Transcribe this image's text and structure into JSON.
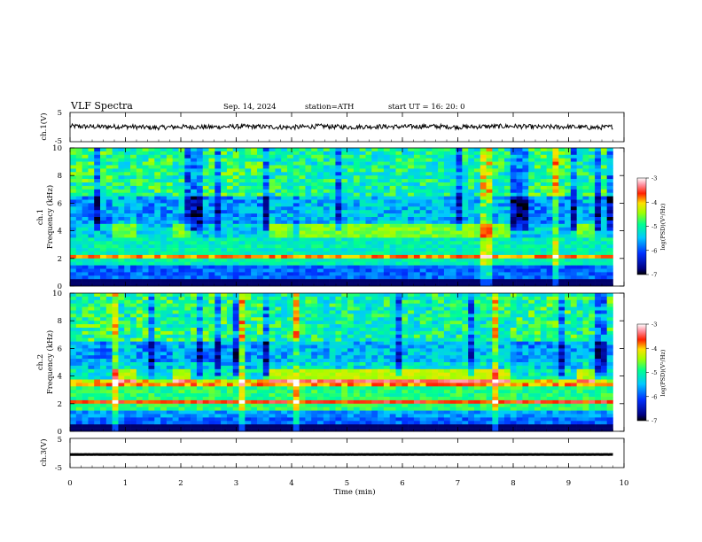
{
  "header": {
    "title": "VLF  Spectra",
    "date": "Sep. 14, 2024",
    "station": "station=ATH",
    "start": "start  UT  =   16: 20: 0"
  },
  "colors": {
    "spec_low": "#00007a",
    "spec_mid": "#00ffd0",
    "spec_high": "#ff1a1a",
    "spec_top": "#ffffff",
    "trace": "#000000"
  },
  "chart_data": [
    {
      "id": "ch1-waveform",
      "type": "line",
      "ylabel": "ch.1(V)",
      "ylim": [
        -5,
        5
      ],
      "yticks": [
        "5",
        "-5"
      ],
      "xlim": [
        0,
        10
      ],
      "x": [
        0,
        0.5,
        1,
        1.5,
        2,
        2.5,
        3,
        3.5,
        4,
        4.5,
        5,
        5.5,
        6,
        6.5,
        7,
        7.5,
        8,
        8.5,
        9,
        9.5,
        9.8
      ],
      "values": [
        0.3,
        0.1,
        0.2,
        -0.2,
        0.1,
        0,
        0.2,
        0.1,
        -0.1,
        0.3,
        0,
        0.2,
        0.1,
        0.3,
        0,
        0.2,
        0.3,
        0,
        0.1,
        -0.2,
        0.1
      ]
    },
    {
      "id": "ch1-spectrogram",
      "type": "heatmap",
      "ylabel": "ch.1",
      "ylabel2": "Frequency  (kHz)",
      "ylim": [
        0,
        10
      ],
      "yticks": [
        "0",
        "2",
        "4",
        "6",
        "8",
        "10"
      ],
      "xlim": [
        0,
        10
      ],
      "colorbar": {
        "label": "log(PSD)(V²/Hz)",
        "range": [
          -7,
          -3
        ],
        "ticks": [
          "-3",
          "-4",
          "-5",
          "-6",
          "-7"
        ]
      },
      "bursts_min": [
        [
          0.8,
          1.2
        ],
        [
          1.8,
          2.2
        ],
        [
          3.6,
          4.0
        ],
        [
          4.1,
          7.9
        ],
        [
          9.1,
          9.5
        ]
      ]
    },
    {
      "id": "ch2-spectrogram",
      "type": "heatmap",
      "ylabel": "ch.2",
      "ylabel2": "Frequency  (kHz)",
      "ylim": [
        0,
        10
      ],
      "yticks": [
        "0",
        "2",
        "4",
        "6",
        "8",
        "10"
      ],
      "xlim": [
        0,
        10
      ],
      "colorbar": {
        "label": "log(PSD)(V²/Hz)",
        "range": [
          -7,
          -3
        ],
        "ticks": [
          "-3",
          "-4",
          "-5",
          "-6",
          "-7"
        ]
      },
      "bursts_min": [
        [
          0.8,
          1.2
        ],
        [
          1.8,
          2.2
        ],
        [
          3.6,
          4.0
        ],
        [
          4.1,
          7.9
        ],
        [
          9.1,
          9.5
        ]
      ]
    },
    {
      "id": "ch3-waveform",
      "type": "line",
      "ylabel": "ch.3(V)",
      "ylim": [
        -5,
        5
      ],
      "yticks": [
        "5",
        "-5"
      ],
      "xlim": [
        0,
        10
      ],
      "x": [
        0,
        9.8
      ],
      "values": [
        -0.5,
        -0.5
      ]
    }
  ],
  "xaxis": {
    "label": "Time  (min)",
    "ticks": [
      "0",
      "1",
      "2",
      "3",
      "4",
      "5",
      "6",
      "7",
      "8",
      "9",
      "10"
    ]
  }
}
